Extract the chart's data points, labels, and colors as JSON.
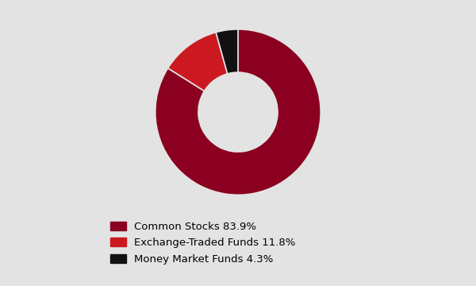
{
  "labels": [
    "Common Stocks 83.9%",
    "Exchange-Traded Funds 11.8%",
    "Money Market Funds 4.3%"
  ],
  "values": [
    83.9,
    11.8,
    4.3
  ],
  "colors": [
    "#8B0020",
    "#CC1820",
    "#111111"
  ],
  "background_color": "#E3E3E3",
  "wedge_edge_color": "#E3E3E3",
  "donut_width": 0.52,
  "startangle": 90,
  "legend_fontsize": 9.5
}
